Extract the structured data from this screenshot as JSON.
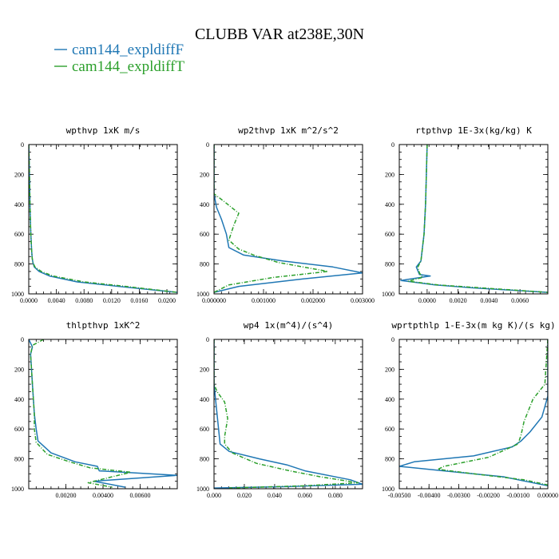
{
  "figure": {
    "title": "CLUBB VAR at238E,30N",
    "legend": [
      {
        "label": "cam144_expldiffF",
        "color": "#1f77b4",
        "dash": "solid"
      },
      {
        "label": "cam144_expldiffT",
        "color": "#2ca02c",
        "dash": "dashed"
      }
    ]
  },
  "chart_data": [
    {
      "type": "line",
      "title": "wpthvp  1xK m/s",
      "xlim": [
        0,
        0.0215
      ],
      "ylim": [
        0,
        1000
      ],
      "y_inverted": true,
      "x_ticks": [
        0.0,
        0.004,
        0.008,
        0.012,
        0.016,
        0.02
      ],
      "x_tick_labels": [
        "0.0000",
        "0.0040",
        "0.0080",
        "0.0120",
        "0.0160",
        "0.0200"
      ],
      "y_ticks": [
        0,
        200,
        400,
        600,
        800,
        1000
      ],
      "y_tick_labels": [
        "0",
        "200",
        "400",
        "600",
        "800",
        "1000"
      ],
      "series": [
        {
          "name": "cam144_expldiffF",
          "color": "#1f77b4",
          "dash": "solid",
          "x": [
            0.0,
            0.0001,
            0.0002,
            0.0003,
            0.0004,
            0.0005,
            0.0006,
            0.0008,
            0.0015,
            0.003,
            0.007,
            0.013,
            0.0215
          ],
          "y": [
            0,
            200,
            450,
            600,
            700,
            760,
            790,
            820,
            850,
            880,
            920,
            950,
            990
          ]
        },
        {
          "name": "cam144_expldiffT",
          "color": "#2ca02c",
          "dash": "dashed",
          "x": [
            0.0,
            0.0001,
            0.0002,
            0.0003,
            0.0004,
            0.0005,
            0.0006,
            0.0009,
            0.0018,
            0.0035,
            0.008,
            0.014,
            0.0215
          ],
          "y": [
            0,
            200,
            450,
            600,
            700,
            760,
            790,
            820,
            850,
            880,
            920,
            950,
            990
          ]
        }
      ]
    },
    {
      "type": "line",
      "title": "wp2thvp  1xK m^2/s^2",
      "xlim": [
        0,
        0.003
      ],
      "ylim": [
        0,
        1000
      ],
      "y_inverted": true,
      "x_ticks": [
        0.0,
        0.001,
        0.002,
        0.003
      ],
      "x_tick_labels": [
        "0.000000",
        "0.001000",
        "0.002000",
        "0.003000"
      ],
      "y_ticks": [
        0,
        200,
        400,
        600,
        800,
        1000
      ],
      "y_tick_labels": [
        "0",
        "200",
        "400",
        "600",
        "800",
        "1000"
      ],
      "series": [
        {
          "name": "cam144_expldiffF",
          "color": "#1f77b4",
          "dash": "solid",
          "x": [
            0.0,
            0.0,
            5e-05,
            0.00015,
            0.00025,
            0.0003,
            0.0006,
            0.0014,
            0.0024,
            0.003,
            0.0018,
            0.0005,
            0.0
          ],
          "y": [
            0,
            330,
            420,
            500,
            600,
            690,
            740,
            780,
            820,
            860,
            900,
            950,
            990
          ]
        },
        {
          "name": "cam144_expldiffT",
          "color": "#2ca02c",
          "dash": "dashed",
          "x": [
            0.0,
            0.0,
            0.0002,
            0.0005,
            0.0004,
            0.0003,
            0.0005,
            0.0008,
            0.0013,
            0.0023,
            0.0012,
            0.0003,
            0.0
          ],
          "y": [
            0,
            330,
            380,
            460,
            540,
            640,
            700,
            740,
            790,
            850,
            890,
            940,
            990
          ]
        }
      ]
    },
    {
      "type": "line",
      "title": "rtpthvp  1E-3x(kg/kg) K",
      "xlim": [
        -0.0018,
        0.0078
      ],
      "ylim": [
        0,
        1000
      ],
      "y_inverted": true,
      "x_ticks": [
        0.0,
        0.002,
        0.004,
        0.006
      ],
      "x_tick_labels": [
        "0.0000",
        "0.0020",
        "0.0040",
        "0.0060"
      ],
      "y_ticks": [
        0,
        200,
        400,
        600,
        800,
        1000
      ],
      "y_tick_labels": [
        "0",
        "200",
        "400",
        "600",
        "800",
        "1000"
      ],
      "series": [
        {
          "name": "cam144_expldiffF",
          "color": "#1f77b4",
          "dash": "solid",
          "x": [
            0.0,
            -0.0001,
            -0.0002,
            -0.0004,
            -0.0007,
            -0.0005,
            0.0002,
            -0.0017,
            0.0005,
            0.003,
            0.0078
          ],
          "y": [
            0,
            400,
            600,
            780,
            820,
            870,
            880,
            910,
            940,
            960,
            990
          ]
        },
        {
          "name": "cam144_expldiffT",
          "color": "#2ca02c",
          "dash": "dashed",
          "x": [
            0.0,
            -0.0001,
            -0.0002,
            -0.0004,
            -0.0006,
            -0.0005,
            -0.0003,
            -0.0012,
            0.0007,
            0.0035,
            0.0078
          ],
          "y": [
            0,
            400,
            600,
            780,
            820,
            860,
            890,
            915,
            940,
            960,
            990
          ]
        }
      ]
    },
    {
      "type": "line",
      "title": "thlpthvp  1xK^2",
      "xlim": [
        0,
        0.008
      ],
      "ylim": [
        0,
        1000
      ],
      "y_inverted": true,
      "x_ticks": [
        0.002,
        0.004,
        0.006
      ],
      "x_tick_labels": [
        "0.00200",
        "0.00400",
        "0.00600"
      ],
      "y_ticks": [
        0,
        200,
        400,
        600,
        800,
        1000
      ],
      "y_tick_labels": [
        "0",
        "200",
        "400",
        "600",
        "800",
        "1000"
      ],
      "series": [
        {
          "name": "cam144_expldiffF",
          "color": "#1f77b4",
          "dash": "solid",
          "x": [
            0.0,
            0.0002,
            0.0001,
            0.0002,
            0.0003,
            0.0004,
            0.0005,
            0.0012,
            0.0025,
            0.0037,
            0.0038,
            0.008,
            0.0035,
            0.0052
          ],
          "y": [
            0,
            50,
            100,
            300,
            500,
            600,
            680,
            760,
            820,
            850,
            880,
            910,
            950,
            990
          ]
        },
        {
          "name": "cam144_expldiffT",
          "color": "#2ca02c",
          "dash": "dashed",
          "x": [
            0.0008,
            0.0002,
            0.0001,
            0.0002,
            0.0003,
            0.0003,
            0.0004,
            0.001,
            0.0022,
            0.0033,
            0.0055,
            0.0045,
            0.0032,
            0.0045
          ],
          "y": [
            0,
            40,
            100,
            300,
            500,
            600,
            690,
            770,
            820,
            860,
            890,
            920,
            960,
            990
          ]
        }
      ]
    },
    {
      "type": "line",
      "title": "wp4  1x(m^4)/(s^4)",
      "xlim": [
        0,
        0.098
      ],
      "ylim": [
        0,
        1000
      ],
      "y_inverted": true,
      "x_ticks": [
        0.0,
        0.02,
        0.04,
        0.06,
        0.08
      ],
      "x_tick_labels": [
        "0.000",
        "0.020",
        "0.040",
        "0.060",
        "0.080"
      ],
      "y_ticks": [
        0,
        200,
        400,
        600,
        800,
        1000
      ],
      "y_tick_labels": [
        "0",
        "200",
        "400",
        "600",
        "800",
        "1000"
      ],
      "series": [
        {
          "name": "cam144_expldiffF",
          "color": "#1f77b4",
          "dash": "solid",
          "x": [
            0.0,
            0.0,
            0.001,
            0.002,
            0.003,
            0.004,
            0.01,
            0.03,
            0.048,
            0.06,
            0.09,
            0.098,
            0.05,
            0.0
          ],
          "y": [
            0,
            300,
            400,
            500,
            600,
            700,
            750,
            800,
            840,
            880,
            940,
            970,
            985,
            995
          ]
        },
        {
          "name": "cam144_expldiffT",
          "color": "#2ca02c",
          "dash": "dashed",
          "x": [
            0.0,
            0.0,
            0.002,
            0.007,
            0.009,
            0.007,
            0.007,
            0.012,
            0.028,
            0.05,
            0.07,
            0.095,
            0.06,
            0.01
          ],
          "y": [
            0,
            300,
            350,
            420,
            530,
            650,
            700,
            760,
            830,
            880,
            920,
            960,
            980,
            995
          ]
        }
      ]
    },
    {
      "type": "line",
      "title": "wprtpthlp  1-E-3x(m kg K)/(s kg)",
      "xlim": [
        -0.005,
        0.0
      ],
      "ylim": [
        0,
        1000
      ],
      "y_inverted": true,
      "x_ticks": [
        -0.005,
        -0.004,
        -0.003,
        -0.002,
        -0.001,
        0.0
      ],
      "x_tick_labels": [
        "-0.00500",
        "-0.00400",
        "-0.00300",
        "-0.00200",
        "-0.00100",
        "0.00000"
      ],
      "y_ticks": [
        0,
        200,
        400,
        600,
        800,
        1000
      ],
      "y_tick_labels": [
        "0",
        "200",
        "400",
        "600",
        "800",
        "1000"
      ],
      "series": [
        {
          "name": "cam144_expldiffF",
          "color": "#1f77b4",
          "dash": "solid",
          "x": [
            0.0,
            0.0,
            -0.0002,
            -0.0006,
            -0.0009,
            -0.0012,
            -0.0025,
            -0.0045,
            -0.005,
            -0.0035,
            -0.0015,
            0.0
          ],
          "y": [
            0,
            380,
            520,
            620,
            680,
            720,
            780,
            820,
            850,
            880,
            920,
            980
          ]
        },
        {
          "name": "cam144_expldiffT",
          "color": "#2ca02c",
          "dash": "dashed",
          "x": [
            0.0,
            -0.0001,
            -0.0005,
            -0.0008,
            -0.0009,
            -0.001,
            -0.002,
            -0.0035,
            -0.0037,
            -0.0025,
            -0.0008,
            0.0
          ],
          "y": [
            0,
            300,
            400,
            550,
            640,
            700,
            790,
            850,
            870,
            900,
            940,
            975
          ]
        }
      ]
    }
  ]
}
